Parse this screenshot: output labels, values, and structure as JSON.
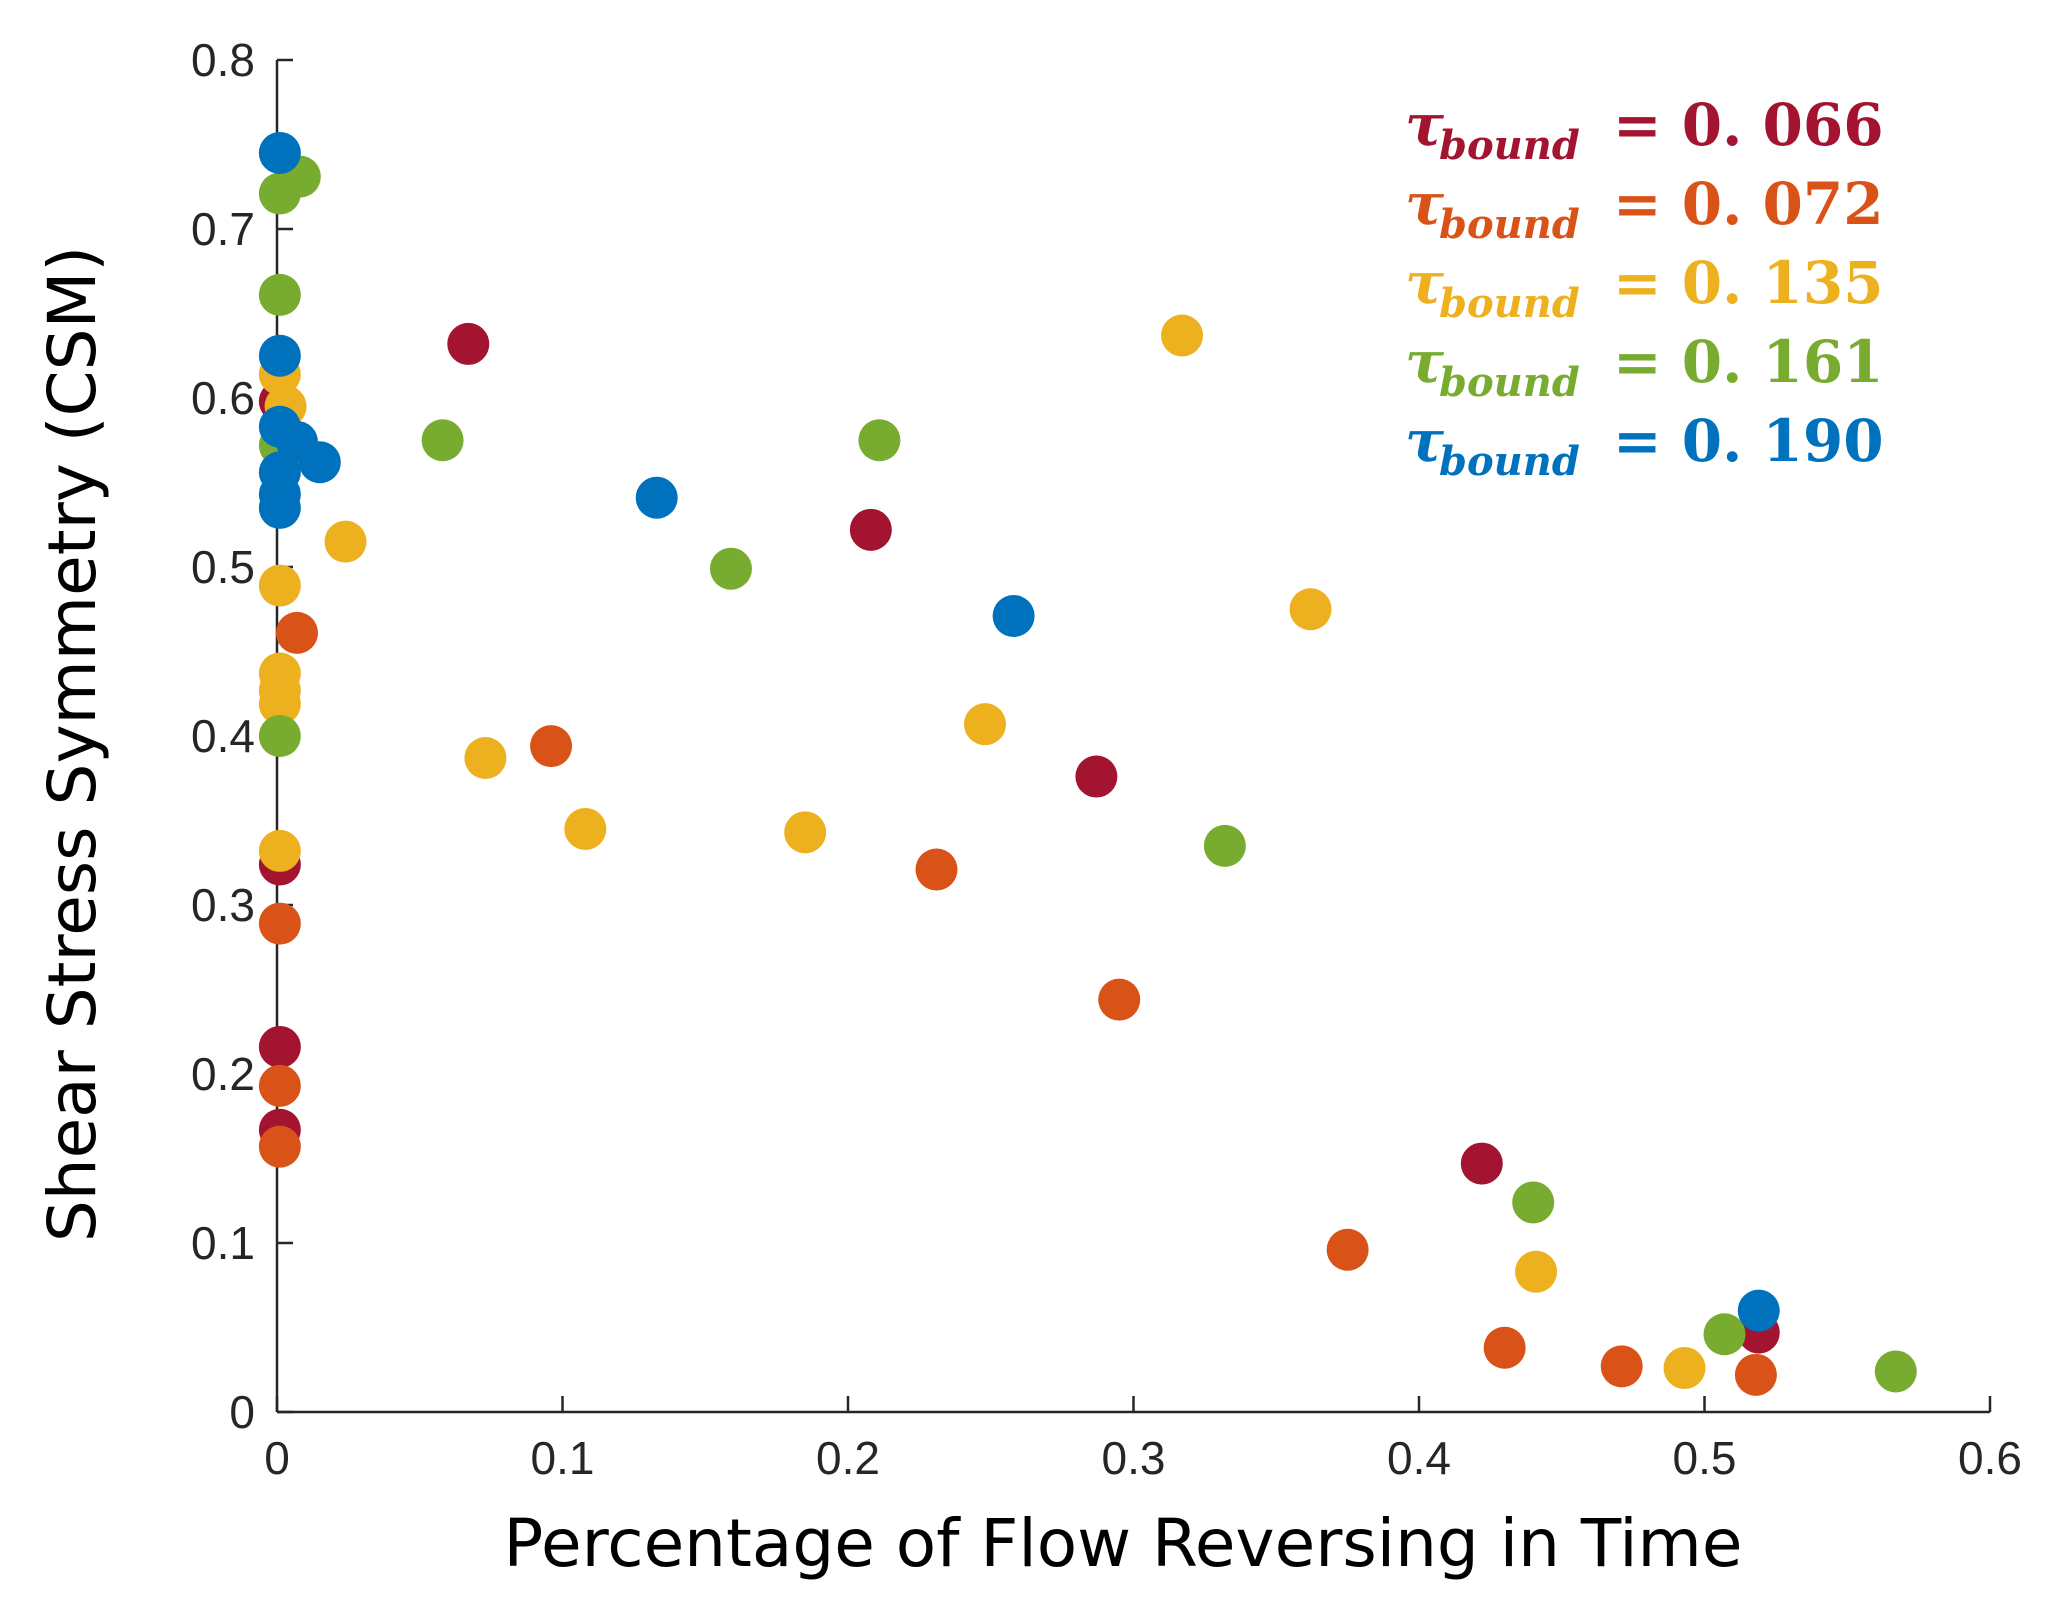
{
  "chart_data": {
    "type": "scatter",
    "title": "",
    "xlabel": "Percentage of Flow Reversing in Time",
    "ylabel": "Shear Stress Symmetry (CSM)",
    "xlim": [
      0,
      0.6
    ],
    "ylim": [
      0,
      0.8
    ],
    "xticks": [
      0,
      0.1,
      0.2,
      0.3,
      0.4,
      0.5,
      0.6
    ],
    "xtick_labels": [
      "0",
      "0.1",
      "0.2",
      "0.3",
      "0.4",
      "0.5",
      "0.6"
    ],
    "yticks": [
      0,
      0.1,
      0.2,
      0.3,
      0.4,
      0.5,
      0.6,
      0.7,
      0.8
    ],
    "ytick_labels": [
      "0",
      "0.1",
      "0.2",
      "0.3",
      "0.4",
      "0.5",
      "0.6",
      "0.7",
      "0.8"
    ],
    "grid": false,
    "legend_position": "top-right",
    "series": [
      {
        "name": "τ_bound = 0.066",
        "symbol": "τ",
        "subscript": "bound",
        "value_text": "= 0. 066",
        "color": "#a2142f",
        "points": [
          [
            0.067,
            0.632
          ],
          [
            0.208,
            0.522
          ],
          [
            0.287,
            0.376
          ],
          [
            0.422,
            0.147
          ],
          [
            0.519,
            0.047
          ],
          [
            0.001,
            0.324
          ],
          [
            0.001,
            0.216
          ],
          [
            0.001,
            0.167
          ],
          [
            0.001,
            0.598
          ]
        ]
      },
      {
        "name": "τ_bound = 0.072",
        "symbol": "τ",
        "subscript": "bound",
        "value_text": "= 0. 072",
        "color": "#d95319",
        "points": [
          [
            0.007,
            0.461
          ],
          [
            0.096,
            0.394
          ],
          [
            0.231,
            0.321
          ],
          [
            0.295,
            0.244
          ],
          [
            0.375,
            0.096
          ],
          [
            0.43,
            0.038
          ],
          [
            0.471,
            0.027
          ],
          [
            0.518,
            0.022
          ],
          [
            0.001,
            0.289
          ],
          [
            0.001,
            0.193
          ],
          [
            0.001,
            0.157
          ]
        ]
      },
      {
        "name": "τ_bound = 0.135",
        "symbol": "τ",
        "subscript": "bound",
        "value_text": "= 0. 135",
        "color": "#edb120",
        "points": [
          [
            0.317,
            0.637
          ],
          [
            0.362,
            0.475
          ],
          [
            0.248,
            0.407
          ],
          [
            0.185,
            0.343
          ],
          [
            0.108,
            0.345
          ],
          [
            0.073,
            0.387
          ],
          [
            0.024,
            0.515
          ],
          [
            0.001,
            0.489
          ],
          [
            0.001,
            0.437
          ],
          [
            0.001,
            0.427
          ],
          [
            0.001,
            0.419
          ],
          [
            0.001,
            0.332
          ],
          [
            0.001,
            0.614
          ],
          [
            0.003,
            0.595
          ],
          [
            0.441,
            0.083
          ],
          [
            0.493,
            0.026
          ]
        ]
      },
      {
        "name": "τ_bound = 0.161",
        "symbol": "τ",
        "subscript": "bound",
        "value_text": "= 0. 161",
        "color": "#77ac30",
        "points": [
          [
            0.001,
            0.721
          ],
          [
            0.008,
            0.731
          ],
          [
            0.001,
            0.661
          ],
          [
            0.058,
            0.575
          ],
          [
            0.211,
            0.575
          ],
          [
            0.159,
            0.499
          ],
          [
            0.332,
            0.335
          ],
          [
            0.44,
            0.124
          ],
          [
            0.507,
            0.046
          ],
          [
            0.567,
            0.024
          ],
          [
            0.001,
            0.4
          ],
          [
            0.001,
            0.572
          ]
        ]
      },
      {
        "name": "τ_bound = 0.190",
        "symbol": "τ",
        "subscript": "bound",
        "value_text": "= 0. 190",
        "color": "#0072bd",
        "points": [
          [
            0.001,
            0.745
          ],
          [
            0.001,
            0.625
          ],
          [
            0.001,
            0.583
          ],
          [
            0.007,
            0.574
          ],
          [
            0.015,
            0.562
          ],
          [
            0.001,
            0.556
          ],
          [
            0.001,
            0.543
          ],
          [
            0.001,
            0.535
          ],
          [
            0.133,
            0.541
          ],
          [
            0.258,
            0.471
          ],
          [
            0.519,
            0.06
          ]
        ]
      }
    ]
  }
}
